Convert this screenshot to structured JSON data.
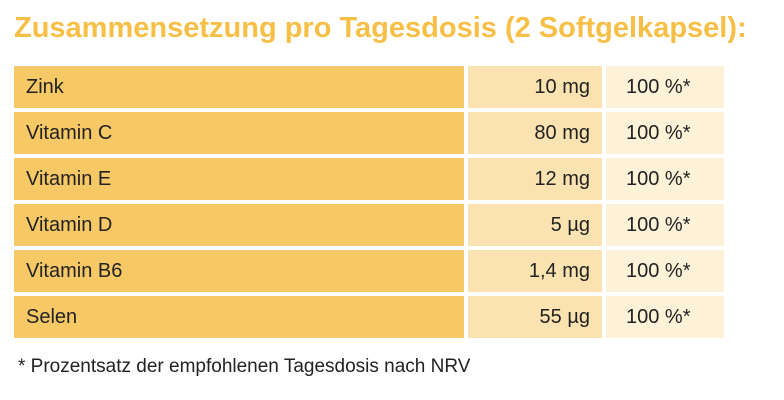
{
  "title": "Zusammensetzung pro Tagesdosis (2 Softgelkapsel):",
  "table": {
    "rows": [
      [
        "Zink",
        "10 mg",
        "100 %*"
      ],
      [
        "Vitamin C",
        "80 mg",
        "100 %*"
      ],
      [
        "Vitamin E",
        "12 mg",
        "100 %*"
      ],
      [
        "Vitamin D",
        "5 µg",
        "100 %*"
      ],
      [
        "Vitamin B6",
        "1,4 mg",
        "100 %*"
      ],
      [
        "Selen",
        "55 µg",
        "100 %*"
      ]
    ]
  },
  "footnote": "* Prozentsatz der empfohlenen Tagesdosis nach NRV"
}
